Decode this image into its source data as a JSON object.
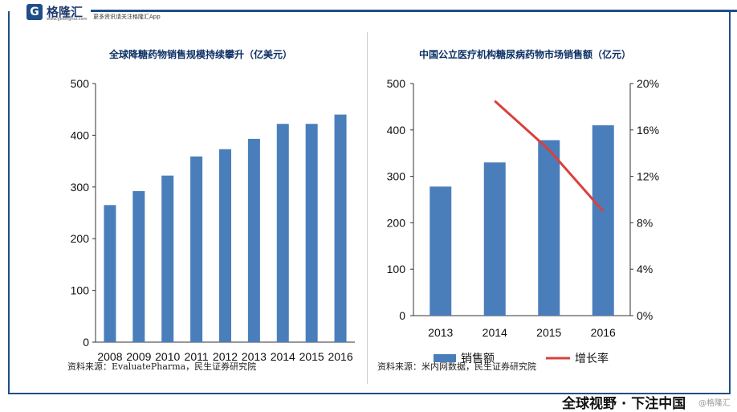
{
  "header": {
    "logo_glyph": "G",
    "logo_name": "格隆汇",
    "logo_url": "www.gelonghui.com",
    "tagline": "更多资讯请关注格隆汇App"
  },
  "footer": {
    "slogan": "全球视野 · 下注中国",
    "watermark": "@格隆汇"
  },
  "chart_data": [
    {
      "type": "bar",
      "title": "全球降糖药物销售规模持续攀升（亿美元）",
      "categories": [
        "2008",
        "2009",
        "2010",
        "2011",
        "2012",
        "2013",
        "2014",
        "2015",
        "2016"
      ],
      "values": [
        265,
        292,
        322,
        359,
        373,
        393,
        422,
        422,
        440
      ],
      "ylim": [
        0,
        500
      ],
      "yticks": [
        "0",
        "100",
        "200",
        "300",
        "400",
        "500"
      ],
      "color": "#4a7ebb",
      "source": "资料来源：EvaluatePharma，民生证券研究院"
    },
    {
      "type": "bar+line",
      "title": "中国公立医疗机构糖尿病药物市场销售额（亿元）",
      "categories": [
        "2013",
        "2014",
        "2015",
        "2016"
      ],
      "series": [
        {
          "name": "销售额",
          "type": "bar",
          "axis": "left",
          "values": [
            278,
            330,
            378,
            410
          ],
          "color": "#4a7ebb"
        },
        {
          "name": "增长率",
          "type": "line",
          "axis": "right",
          "values": [
            null,
            0.185,
            0.143,
            0.09
          ],
          "color": "#d9413c"
        }
      ],
      "ylim_left": [
        0,
        500
      ],
      "yticks_left": [
        "0",
        "100",
        "200",
        "300",
        "400",
        "500"
      ],
      "ylim_right": [
        0,
        0.2
      ],
      "yticks_right": [
        "0%",
        "4%",
        "8%",
        "12%",
        "16%",
        "20%"
      ],
      "legend": "bottom",
      "source": "资料来源：米内网数据，民生证券研究院"
    }
  ]
}
